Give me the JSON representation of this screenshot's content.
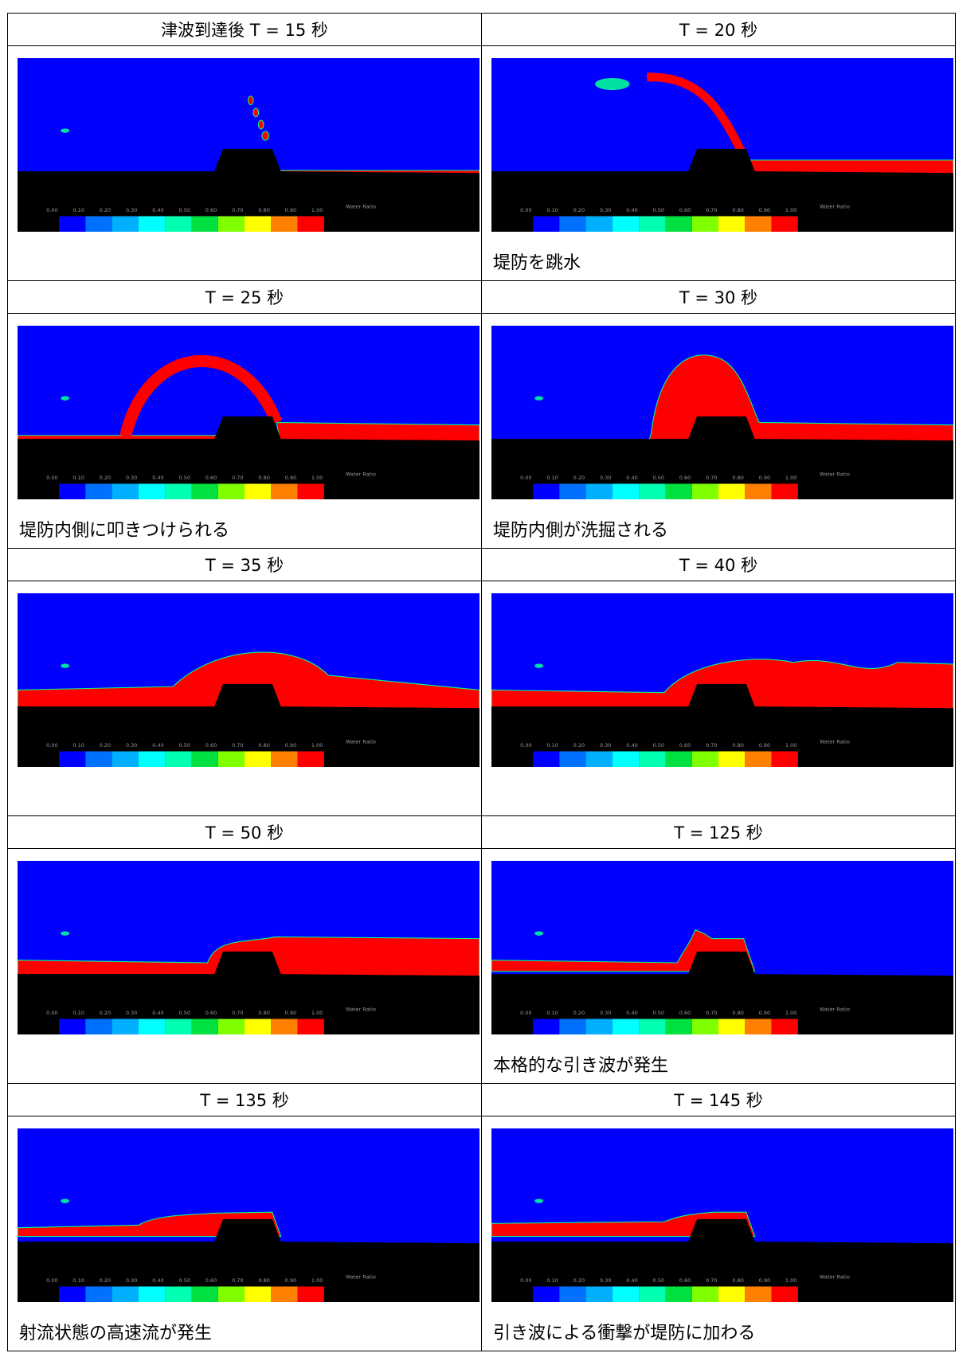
{
  "cells": [
    {
      "label": "津波到達後 T = 15 秒"
    },
    {
      "label": "T = 20 秒",
      "caption": "堤防を跳水"
    },
    {
      "label": "T = 25 秒",
      "caption": "堤防内側に叩きつけられる"
    },
    {
      "label": "T = 30 秒",
      "caption": "堤防内側が洗掘される"
    },
    {
      "label": "T = 35 秒"
    },
    {
      "label": "T = 40 秒"
    },
    {
      "label": "T = 50 秒"
    },
    {
      "label": "T = 125 秒",
      "caption": "本格的な引き波が発生"
    },
    {
      "label": "T = 135 秒",
      "caption": "射流状態の高速流が発生"
    },
    {
      "label": "T = 145 秒",
      "caption": "引き波による衝撃が堤防に加わる"
    }
  ],
  "colorbar": {
    "ticks": [
      "0.00",
      "0.10",
      "0.20",
      "0.30",
      "0.40",
      "0.50",
      "0.60",
      "0.70",
      "0.80",
      "0.90",
      "1.00"
    ],
    "label": "Water Ratio"
  }
}
